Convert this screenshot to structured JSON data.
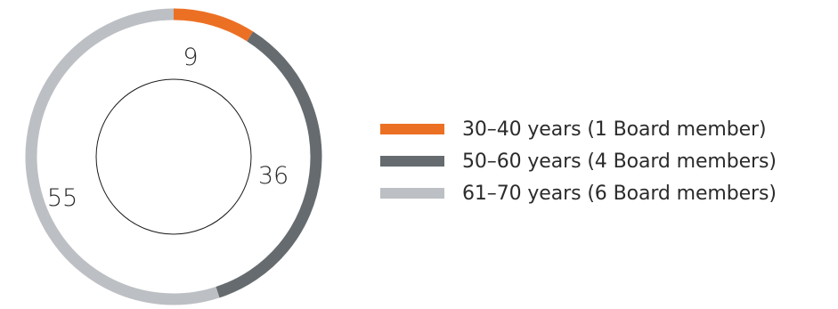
{
  "chart_data": {
    "type": "pie",
    "variant": "donut",
    "categories": [
      "30–40 years (1 Board member)",
      "50–60 years (4 Board members)",
      "61–70 years (6 Board members)"
    ],
    "values": [
      9,
      36,
      55
    ],
    "data_labels": [
      "9",
      "36",
      "55"
    ],
    "colors": [
      "#ec7024",
      "#656b6e",
      "#bcbfc3"
    ],
    "legend_position": "right",
    "title": ""
  }
}
